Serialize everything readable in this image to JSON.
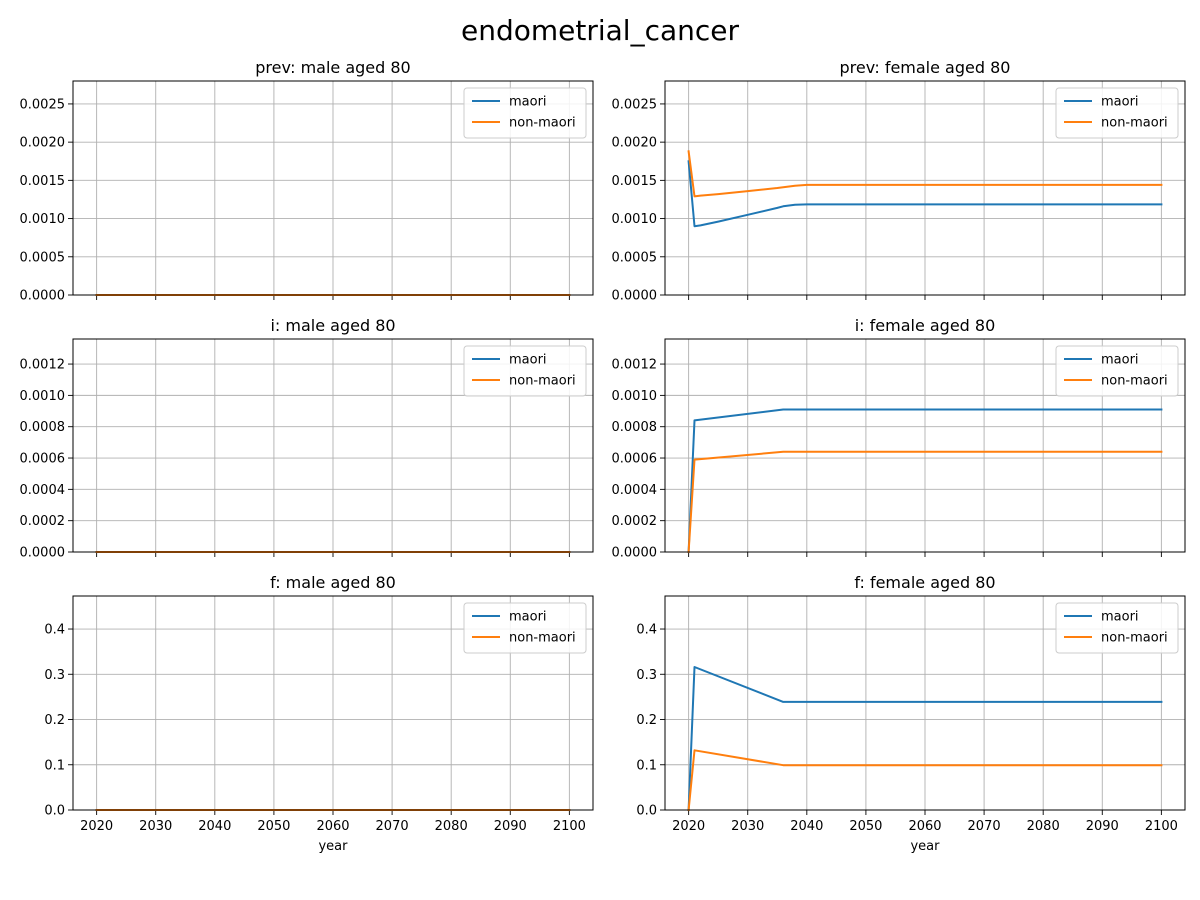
{
  "figure_title": "endometrial_cancer",
  "colors": {
    "maori": "#1f77b4",
    "non-maori": "#ff7f0e",
    "grid": "#b0b0b0",
    "axes": "#000000"
  },
  "chart_data": [
    {
      "type": "line",
      "title": "prev: male aged 80",
      "xlabel": "",
      "ylabel": "",
      "xlim": [
        2016,
        2104
      ],
      "ylim": [
        0,
        0.0028
      ],
      "xticks": [
        2020,
        2030,
        2040,
        2050,
        2060,
        2070,
        2080,
        2090,
        2100
      ],
      "show_xtick_labels": false,
      "yticks": [
        "0.0000",
        "0.0005",
        "0.0010",
        "0.0015",
        "0.0020",
        "0.0025"
      ],
      "grid": true,
      "legend": "upper right",
      "series": [
        {
          "name": "maori",
          "x": [
            2020,
            2100
          ],
          "y": [
            0,
            0
          ]
        },
        {
          "name": "non-maori",
          "x": [
            2020,
            2100
          ],
          "y": [
            0,
            0
          ]
        }
      ]
    },
    {
      "type": "line",
      "title": "prev: female aged 80",
      "xlabel": "",
      "ylabel": "",
      "xlim": [
        2016,
        2104
      ],
      "ylim": [
        0,
        0.0028
      ],
      "xticks": [
        2020,
        2030,
        2040,
        2050,
        2060,
        2070,
        2080,
        2090,
        2100
      ],
      "show_xtick_labels": false,
      "yticks": [
        "0.0000",
        "0.0005",
        "0.0010",
        "0.0015",
        "0.0020",
        "0.0025"
      ],
      "grid": true,
      "legend": "upper right",
      "series": [
        {
          "name": "maori",
          "x": [
            2020,
            2021,
            2022,
            2025,
            2030,
            2035,
            2036,
            2038,
            2040,
            2100
          ],
          "y": [
            0.00175,
            0.0009,
            0.00091,
            0.00096,
            0.00105,
            0.00114,
            0.00116,
            0.00118,
            0.001185,
            0.001185
          ]
        },
        {
          "name": "non-maori",
          "x": [
            2020,
            2021,
            2022,
            2025,
            2030,
            2035,
            2036,
            2038,
            2040,
            2100
          ],
          "y": [
            0.00188,
            0.00129,
            0.0013,
            0.00132,
            0.00136,
            0.0014,
            0.00141,
            0.00143,
            0.00144,
            0.00144
          ]
        }
      ]
    },
    {
      "type": "line",
      "title": "i: male aged 80",
      "xlabel": "",
      "ylabel": "",
      "xlim": [
        2016,
        2104
      ],
      "ylim": [
        0,
        0.00136
      ],
      "xticks": [
        2020,
        2030,
        2040,
        2050,
        2060,
        2070,
        2080,
        2090,
        2100
      ],
      "show_xtick_labels": false,
      "yticks": [
        "0.0000",
        "0.0002",
        "0.0004",
        "0.0006",
        "0.0008",
        "0.0010",
        "0.0012"
      ],
      "grid": true,
      "legend": "upper right",
      "series": [
        {
          "name": "maori",
          "x": [
            2020,
            2100
          ],
          "y": [
            0,
            0
          ]
        },
        {
          "name": "non-maori",
          "x": [
            2020,
            2100
          ],
          "y": [
            0,
            0
          ]
        }
      ]
    },
    {
      "type": "line",
      "title": "i: female aged 80",
      "xlabel": "",
      "ylabel": "",
      "xlim": [
        2016,
        2104
      ],
      "ylim": [
        0,
        0.00136
      ],
      "xticks": [
        2020,
        2030,
        2040,
        2050,
        2060,
        2070,
        2080,
        2090,
        2100
      ],
      "show_xtick_labels": false,
      "yticks": [
        "0.0000",
        "0.0002",
        "0.0004",
        "0.0006",
        "0.0008",
        "0.0010",
        "0.0012"
      ],
      "grid": true,
      "legend": "upper right",
      "series": [
        {
          "name": "maori",
          "x": [
            2020,
            2021,
            2036,
            2100
          ],
          "y": [
            0,
            0.00084,
            0.00091,
            0.00091
          ]
        },
        {
          "name": "non-maori",
          "x": [
            2020,
            2021,
            2036,
            2100
          ],
          "y": [
            0,
            0.00059,
            0.00064,
            0.00064
          ]
        }
      ]
    },
    {
      "type": "line",
      "title": "f: male aged 80",
      "xlabel": "year",
      "ylabel": "",
      "xlim": [
        2016,
        2104
      ],
      "ylim": [
        0,
        0.473
      ],
      "xticks": [
        2020,
        2030,
        2040,
        2050,
        2060,
        2070,
        2080,
        2090,
        2100
      ],
      "show_xtick_labels": true,
      "yticks": [
        "0.0",
        "0.1",
        "0.2",
        "0.3",
        "0.4"
      ],
      "grid": true,
      "legend": "upper right",
      "series": [
        {
          "name": "maori",
          "x": [
            2020,
            2100
          ],
          "y": [
            0,
            0
          ]
        },
        {
          "name": "non-maori",
          "x": [
            2020,
            2100
          ],
          "y": [
            0,
            0
          ]
        }
      ]
    },
    {
      "type": "line",
      "title": "f: female aged 80",
      "xlabel": "year",
      "ylabel": "",
      "xlim": [
        2016,
        2104
      ],
      "ylim": [
        0,
        0.473
      ],
      "xticks": [
        2020,
        2030,
        2040,
        2050,
        2060,
        2070,
        2080,
        2090,
        2100
      ],
      "show_xtick_labels": true,
      "yticks": [
        "0.0",
        "0.1",
        "0.2",
        "0.3",
        "0.4"
      ],
      "grid": true,
      "legend": "upper right",
      "series": [
        {
          "name": "maori",
          "x": [
            2020,
            2021,
            2036,
            2100
          ],
          "y": [
            0,
            0.316,
            0.239,
            0.239
          ]
        },
        {
          "name": "non-maori",
          "x": [
            2020,
            2021,
            2036,
            2100
          ],
          "y": [
            0,
            0.132,
            0.099,
            0.099
          ]
        }
      ]
    }
  ]
}
